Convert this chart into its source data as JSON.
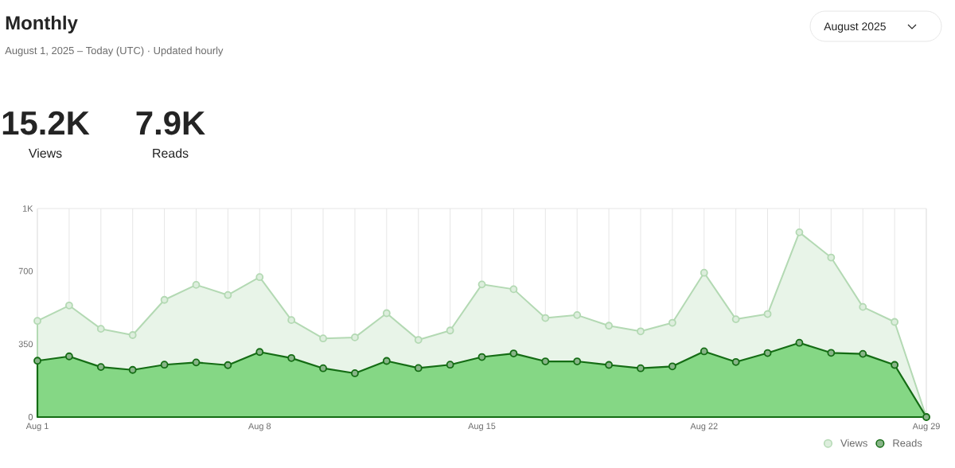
{
  "chart_data": {
    "type": "area",
    "title": "Monthly",
    "subtitle": "August 1, 2025 – Today (UTC)  ·  Updated hourly",
    "annotations": [
      "15.2K",
      "Views",
      "7.9K",
      "Reads",
      "August 2025"
    ],
    "categories": [
      "Aug 1",
      null,
      null,
      null,
      null,
      null,
      null,
      "Aug 8",
      null,
      null,
      null,
      null,
      null,
      null,
      "Aug 15",
      null,
      null,
      null,
      null,
      null,
      null,
      "Aug 22",
      null,
      null,
      null,
      null,
      null,
      null,
      "Aug 29"
    ],
    "series": [
      {
        "name": "Views",
        "color": "#b3d9b3",
        "values": [
          461,
          535,
          423,
          393,
          562,
          634,
          585,
          671,
          465,
          377,
          382,
          498,
          370,
          415,
          636,
          613,
          475,
          489,
          438,
          411,
          452,
          692,
          469,
          494,
          886,
          765,
          528,
          456,
          0
        ]
      },
      {
        "name": "Reads",
        "color": "#146c14",
        "values": [
          270,
          291,
          240,
          226,
          251,
          262,
          249,
          312,
          283,
          234,
          210,
          269,
          235,
          251,
          288,
          305,
          267,
          267,
          250,
          234,
          243,
          315,
          264,
          307,
          356,
          308,
          303,
          250,
          0
        ]
      }
    ],
    "ylim": [
      0,
      1000
    ],
    "yticks": [
      0,
      350,
      700,
      {
        "value": 1000,
        "label": "1K"
      }
    ],
    "grid": "x",
    "legend": "bottom right",
    "marker": "circle"
  }
}
